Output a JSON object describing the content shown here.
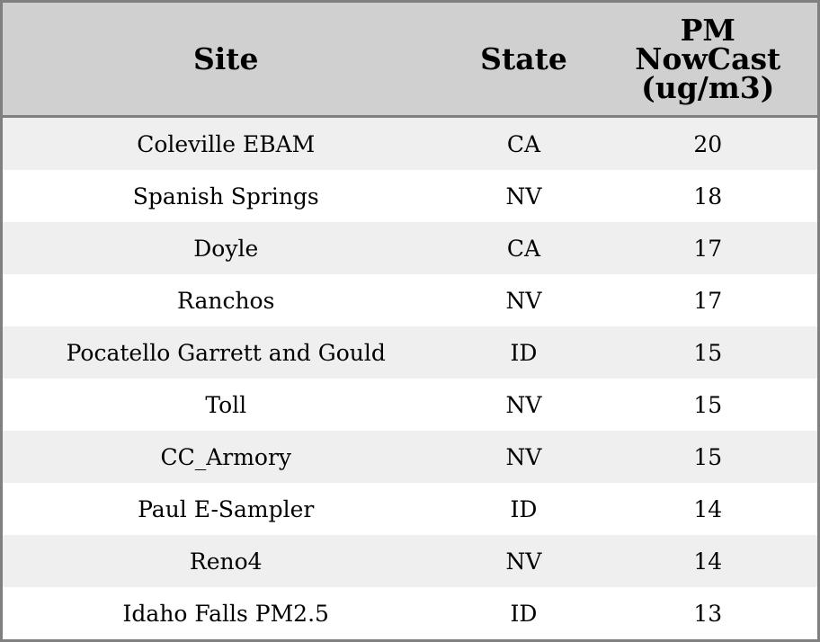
{
  "table": {
    "headers": [
      "Site",
      "State",
      "PM NowCast (ug/m3)"
    ],
    "header_lines": {
      "pm": [
        "PM",
        "NowCast",
        "(ug/m3)"
      ]
    },
    "rows": [
      {
        "site": "Coleville EBAM",
        "state": "CA",
        "pm": "20"
      },
      {
        "site": "Spanish Springs",
        "state": "NV",
        "pm": "18"
      },
      {
        "site": "Doyle",
        "state": "CA",
        "pm": "17"
      },
      {
        "site": "Ranchos",
        "state": "NV",
        "pm": "17"
      },
      {
        "site": "Pocatello Garrett and Gould",
        "state": "ID",
        "pm": "15"
      },
      {
        "site": "Toll",
        "state": "NV",
        "pm": "15"
      },
      {
        "site": "CC_Armory",
        "state": "NV",
        "pm": "15"
      },
      {
        "site": "Paul E-Sampler",
        "state": "ID",
        "pm": "14"
      },
      {
        "site": "Reno4",
        "state": "NV",
        "pm": "14"
      },
      {
        "site": "Idaho Falls PM2.5",
        "state": "ID",
        "pm": "13"
      }
    ]
  },
  "colors": {
    "header_bg": "#d0d0d0",
    "stripe": "#efefef",
    "border": "#808080"
  }
}
